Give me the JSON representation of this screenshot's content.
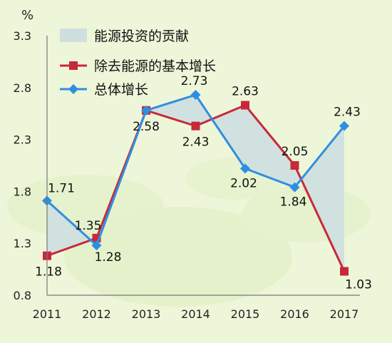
{
  "chart_data": {
    "type": "line",
    "title": "",
    "xlabel": "",
    "ylabel": "%",
    "categories": [
      "2011",
      "2012",
      "2013",
      "2014",
      "2015",
      "2016",
      "2017"
    ],
    "ylim": [
      0.8,
      3.3
    ],
    "yticks": [
      "0.8",
      "1.3",
      "1.8",
      "2.3",
      "2.8",
      "3.3"
    ],
    "legend_position": "top-center",
    "series": [
      {
        "name": "能源投资的贡献",
        "kind": "area-between",
        "color": "#cfdfe0"
      },
      {
        "name": "除去能源的基本增长",
        "color": "#c8283a",
        "marker": "square",
        "values": [
          1.18,
          1.35,
          2.58,
          2.43,
          2.63,
          2.05,
          1.03
        ],
        "labels": [
          "1.18",
          "1.35",
          "2.58",
          "2.43",
          "2.63",
          "2.05",
          "1.03"
        ]
      },
      {
        "name": "总体增长",
        "color": "#2e8fe0",
        "marker": "diamond",
        "values": [
          1.71,
          1.28,
          2.58,
          2.73,
          2.02,
          1.84,
          2.43
        ],
        "labels": [
          "1.71",
          "1.28",
          "2.58",
          "2.73",
          "2.02",
          "1.84",
          "2.43"
        ]
      }
    ]
  }
}
